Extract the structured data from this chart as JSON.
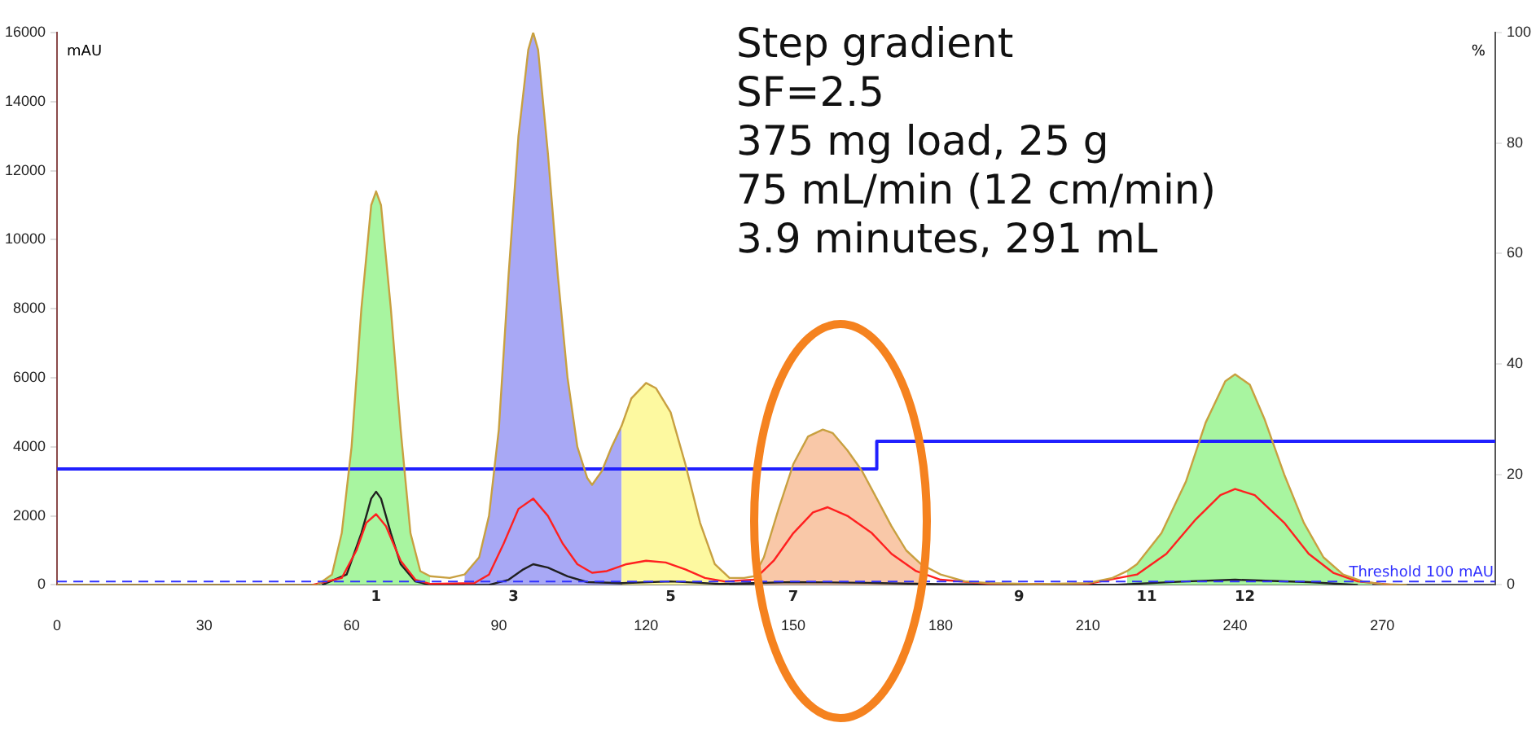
{
  "chart_data": {
    "type": "line",
    "ylabel": "mAU",
    "y2label": "%",
    "xlim": [
      0,
      293
    ],
    "xticks": [
      0,
      30,
      60,
      90,
      120,
      150,
      180,
      210,
      240,
      270
    ],
    "ylim": [
      0,
      16000
    ],
    "yticks": [
      0,
      2000,
      4000,
      6000,
      8000,
      10000,
      12000,
      14000,
      16000
    ],
    "y2lim": [
      0,
      100
    ],
    "y2ticks": [
      0,
      20,
      40,
      60,
      80,
      100
    ],
    "grid": false,
    "legend": false,
    "marker": "none",
    "series": [
      {
        "type": "area",
        "color": "#a8f5a0",
        "x": [
          53,
          56,
          58,
          60,
          62,
          64,
          65,
          66,
          68,
          70,
          72,
          74,
          76
        ],
        "values": [
          0,
          300,
          1500,
          4000,
          8000,
          11000,
          11400,
          11000,
          8000,
          4500,
          1500,
          400,
          250
        ]
      },
      {
        "type": "area",
        "color": "#a8a8f5",
        "x": [
          83,
          86,
          88,
          90,
          92,
          94,
          96,
          97,
          98,
          100,
          102,
          104,
          106,
          108,
          109,
          111,
          113,
          115
        ],
        "values": [
          300,
          800,
          2000,
          4500,
          9000,
          13000,
          15500,
          16000,
          15500,
          12500,
          9000,
          6000,
          4000,
          3100,
          2900,
          3300,
          4000,
          4600
        ]
      },
      {
        "type": "area",
        "color": "#fdf9a0",
        "x": [
          115,
          117,
          120,
          122,
          125,
          128,
          131,
          134,
          137
        ],
        "values": [
          4600,
          5400,
          5850,
          5700,
          5000,
          3500,
          1800,
          600,
          200
        ]
      },
      {
        "type": "area",
        "color": "#f9c8a8",
        "x": [
          142,
          144,
          147,
          150,
          153,
          156,
          158,
          161,
          164,
          167,
          170,
          173,
          176
        ],
        "values": [
          250,
          800,
          2200,
          3500,
          4300,
          4500,
          4400,
          3900,
          3300,
          2500,
          1700,
          1000,
          600
        ]
      },
      {
        "type": "area",
        "color": "#a8f5a0",
        "x": [
          218,
          220,
          225,
          230,
          234,
          238,
          240,
          243,
          246,
          250,
          254,
          258,
          262,
          266,
          268
        ],
        "values": [
          400,
          600,
          1500,
          3000,
          4700,
          5900,
          6100,
          5800,
          4800,
          3200,
          1800,
          800,
          300,
          100,
          60
        ]
      },
      {
        "color": "#c8a040",
        "x": [
          0,
          53,
          56,
          58,
          60,
          62,
          64,
          65,
          66,
          68,
          70,
          72,
          74,
          76,
          80,
          83,
          86,
          88,
          90,
          92,
          94,
          96,
          97,
          98,
          100,
          102,
          104,
          106,
          108,
          109,
          111,
          113,
          115,
          117,
          120,
          122,
          125,
          128,
          131,
          134,
          137,
          140,
          142,
          144,
          147,
          150,
          153,
          156,
          158,
          161,
          164,
          167,
          170,
          173,
          176,
          180,
          185,
          190,
          200,
          210,
          215,
          218,
          220,
          225,
          230,
          234,
          238,
          240,
          243,
          246,
          250,
          254,
          258,
          262,
          266,
          268,
          270,
          275
        ],
        "values": [
          0,
          0,
          300,
          1500,
          4000,
          8000,
          11000,
          11400,
          11000,
          8000,
          4500,
          1500,
          400,
          250,
          200,
          300,
          800,
          2000,
          4500,
          9000,
          13000,
          15500,
          16000,
          15500,
          12500,
          9000,
          6000,
          4000,
          3100,
          2900,
          3300,
          4000,
          4600,
          5400,
          5850,
          5700,
          5000,
          3500,
          1800,
          600,
          200,
          200,
          250,
          800,
          2200,
          3500,
          4300,
          4500,
          4400,
          3900,
          3300,
          2500,
          1700,
          1000,
          600,
          300,
          100,
          50,
          20,
          50,
          200,
          400,
          600,
          1500,
          3000,
          4700,
          5900,
          6100,
          5800,
          4800,
          3200,
          1800,
          800,
          300,
          100,
          60,
          20,
          0
        ]
      },
      {
        "color": "#ff2020",
        "x": [
          52,
          58,
          61,
          63,
          65,
          67,
          70,
          73,
          76,
          85,
          88,
          91,
          94,
          97,
          100,
          103,
          106,
          109,
          112,
          116,
          120,
          124,
          128,
          132,
          136,
          142,
          146,
          150,
          154,
          157,
          161,
          166,
          170,
          175,
          180,
          190,
          210,
          220,
          226,
          232,
          237,
          240,
          244,
          250,
          255,
          260,
          265,
          272
        ],
        "values": [
          0,
          200,
          1000,
          1800,
          2050,
          1700,
          700,
          150,
          30,
          50,
          300,
          1200,
          2200,
          2500,
          2000,
          1200,
          600,
          350,
          400,
          600,
          700,
          650,
          450,
          200,
          100,
          150,
          700,
          1500,
          2100,
          2250,
          2000,
          1500,
          900,
          400,
          150,
          30,
          30,
          300,
          900,
          1900,
          2600,
          2780,
          2600,
          1800,
          900,
          350,
          100,
          0
        ]
      },
      {
        "color": "#202020",
        "x": [
          54,
          59,
          62,
          64,
          65,
          66,
          68,
          70,
          73,
          76,
          88,
          92,
          95,
          97,
          100,
          104,
          108,
          115,
          125,
          135,
          150,
          165,
          180,
          215,
          230,
          240,
          255,
          265
        ],
        "values": [
          0,
          300,
          1500,
          2500,
          2700,
          2500,
          1500,
          600,
          100,
          0,
          0,
          150,
          450,
          600,
          500,
          250,
          80,
          50,
          100,
          30,
          80,
          60,
          20,
          0,
          100,
          150,
          80,
          0
        ]
      },
      {
        "type": "step",
        "axis": "y2",
        "color": "#2020ff",
        "x": [
          0,
          167,
          293
        ],
        "values": [
          21,
          26,
          26
        ]
      }
    ],
    "ref_lines": [
      {
        "axis": "y",
        "value": 100,
        "label": "Threshold 100 mAU",
        "color": "#3030ff",
        "line_style": "dashed"
      }
    ],
    "annotations": [
      "Step gradient",
      "SF=2.5",
      "375 mg load, 25 g",
      "75 mL/min (12 cm/min)",
      "3.9 minutes, 291 mL",
      {
        "text": "1",
        "x": 65,
        "y": 0
      },
      {
        "text": "3",
        "x": 93,
        "y": 0
      },
      {
        "text": "5",
        "x": 125,
        "y": 0
      },
      {
        "text": "7",
        "x": 150,
        "y": 0
      },
      {
        "text": "9",
        "x": 196,
        "y": 0
      },
      {
        "text": "11",
        "x": 222,
        "y": 0
      },
      {
        "text": "12",
        "x": 242,
        "y": 0
      }
    ]
  }
}
